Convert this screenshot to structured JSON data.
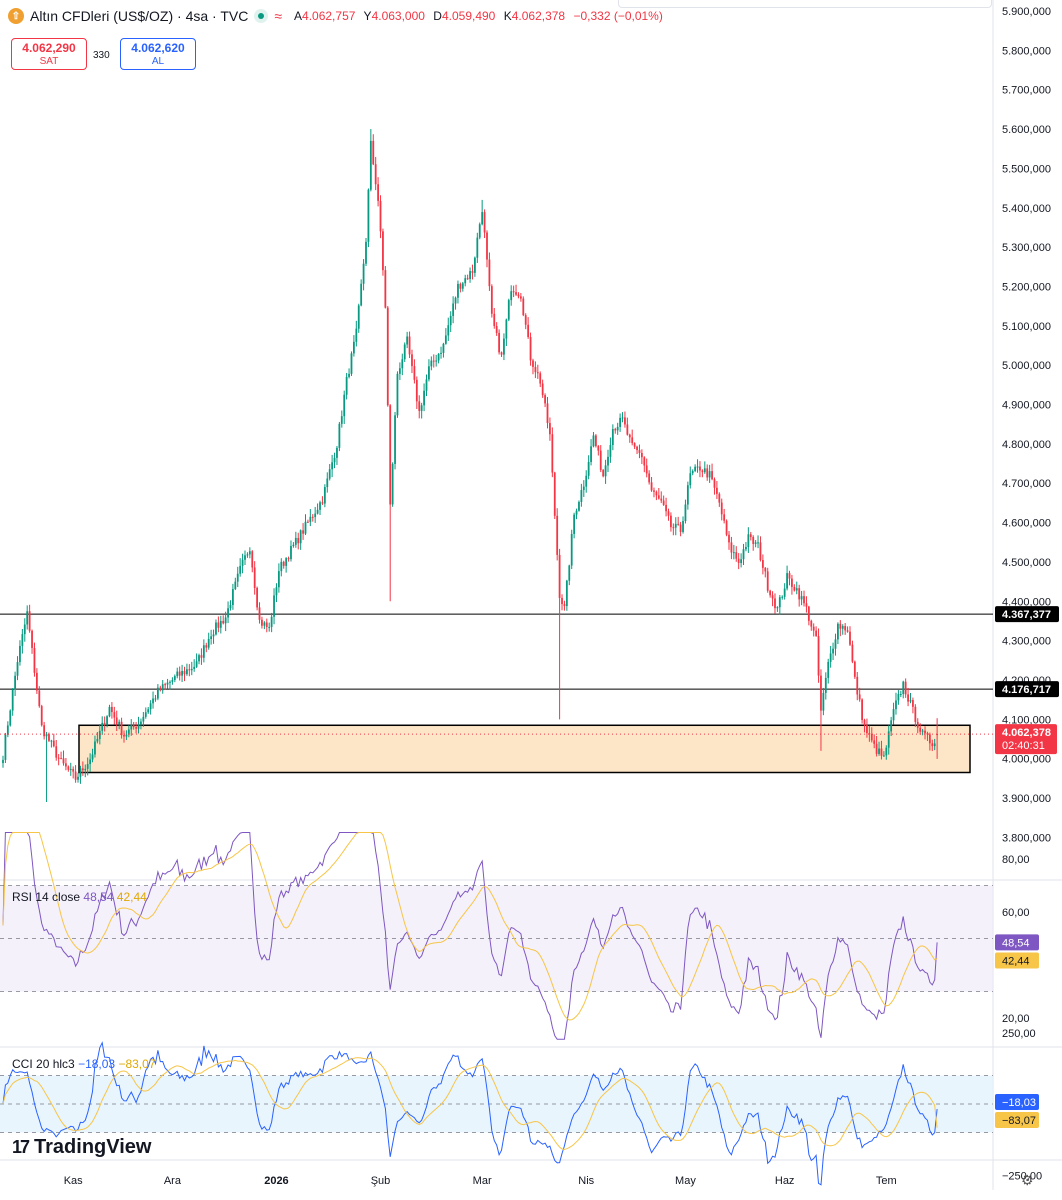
{
  "header": {
    "title": "Altın CFDleri (US$/OZ) · 4sa · TVC",
    "logo_icon": "gold-coin-icon",
    "status_icon": "market-open-dot-icon",
    "wave_icon": "wave-icon",
    "ohlc": [
      {
        "key": "A",
        "value": "4.062,757"
      },
      {
        "key": "Y",
        "value": "4.063,000"
      },
      {
        "key": "D",
        "value": "4.059,490"
      },
      {
        "key": "K",
        "value": "4.062,378"
      },
      {
        "key": "",
        "value": "−0,332 (−0,01%)"
      }
    ]
  },
  "trade": {
    "sell_price": "4.062,290",
    "sell_label": "SAT",
    "spread": "330",
    "buy_price": "4.062,620",
    "buy_label": "AL"
  },
  "branding": {
    "name": "TradingView",
    "mark": "17"
  },
  "settings_icon": "settings-gear-icon",
  "colors": {
    "up": "#089981",
    "down": "#f23645",
    "rsi_line": "#7e57c2",
    "rsi_ma": "#f7c547",
    "cci_line": "#2962ff",
    "cci_ma": "#f7c547",
    "zone_fill": "#fde6c7",
    "current_price": "#f23645"
  },
  "chart_data": [
    {
      "type": "candlestick",
      "symbol": "Altın CFDleri (US$/OZ) · 4sa · TVC",
      "y_axis_labels": [
        "3.800,000",
        "3.900,000",
        "4.000,000",
        "4.100,000",
        "4.200,000",
        "4.300,000",
        "4.400,000",
        "4.500,000",
        "4.600,000",
        "4.700,000",
        "4.800,000",
        "4.900,000",
        "5.000,000",
        "5.100,000",
        "5.200,000",
        "5.300,000",
        "5.400,000",
        "5.500,000",
        "5.600,000",
        "5.700,000",
        "5.800,000",
        "5.900,000"
      ],
      "ylim": [
        3700,
        5920
      ],
      "x_axis_labels": [
        "Kas",
        "Ara",
        "2026",
        "Şub",
        "Mar",
        "Nis",
        "May",
        "Haz",
        "Tem"
      ],
      "anchors": [
        [
          0,
          4010
        ],
        [
          6,
          4250
        ],
        [
          10,
          4370
        ],
        [
          16,
          4080
        ],
        [
          24,
          3990
        ],
        [
          30,
          3950
        ],
        [
          36,
          4000
        ],
        [
          44,
          4130
        ],
        [
          50,
          4060
        ],
        [
          56,
          4090
        ],
        [
          64,
          4170
        ],
        [
          72,
          4210
        ],
        [
          80,
          4240
        ],
        [
          86,
          4320
        ],
        [
          92,
          4360
        ],
        [
          98,
          4480
        ],
        [
          102,
          4540
        ],
        [
          106,
          4350
        ],
        [
          110,
          4330
        ],
        [
          114,
          4480
        ],
        [
          120,
          4540
        ],
        [
          126,
          4600
        ],
        [
          132,
          4660
        ],
        [
          138,
          4800
        ],
        [
          142,
          4960
        ],
        [
          146,
          5080
        ],
        [
          150,
          5320
        ],
        [
          152,
          5560
        ],
        [
          155,
          5420
        ],
        [
          158,
          5150
        ],
        [
          160,
          4640
        ],
        [
          163,
          4980
        ],
        [
          167,
          5060
        ],
        [
          172,
          4880
        ],
        [
          176,
          4990
        ],
        [
          182,
          5050
        ],
        [
          188,
          5200
        ],
        [
          194,
          5240
        ],
        [
          198,
          5400
        ],
        [
          202,
          5120
        ],
        [
          206,
          5020
        ],
        [
          210,
          5200
        ],
        [
          214,
          5180
        ],
        [
          218,
          5020
        ],
        [
          222,
          4960
        ],
        [
          226,
          4820
        ],
        [
          230,
          4420
        ],
        [
          232,
          4380
        ],
        [
          236,
          4620
        ],
        [
          240,
          4700
        ],
        [
          244,
          4820
        ],
        [
          248,
          4720
        ],
        [
          252,
          4840
        ],
        [
          256,
          4860
        ],
        [
          260,
          4790
        ],
        [
          264,
          4770
        ],
        [
          268,
          4680
        ],
        [
          272,
          4650
        ],
        [
          276,
          4590
        ],
        [
          280,
          4580
        ],
        [
          284,
          4720
        ],
        [
          288,
          4740
        ],
        [
          292,
          4720
        ],
        [
          296,
          4650
        ],
        [
          300,
          4540
        ],
        [
          304,
          4500
        ],
        [
          308,
          4560
        ],
        [
          312,
          4540
        ],
        [
          316,
          4440
        ],
        [
          320,
          4380
        ],
        [
          324,
          4460
        ],
        [
          328,
          4430
        ],
        [
          332,
          4380
        ],
        [
          336,
          4300
        ],
        [
          338,
          4120
        ],
        [
          341,
          4240
        ],
        [
          345,
          4340
        ],
        [
          349,
          4330
        ],
        [
          352,
          4200
        ],
        [
          356,
          4080
        ],
        [
          360,
          4030
        ],
        [
          364,
          4000
        ],
        [
          368,
          4120
        ],
        [
          372,
          4190
        ],
        [
          376,
          4120
        ],
        [
          380,
          4060
        ],
        [
          384,
          4040
        ],
        [
          386,
          4062
        ]
      ],
      "last_candle": {
        "open": 4062.757,
        "high": 4063.0,
        "low": 4059.49,
        "close": 4062.378
      },
      "horizontal_lines": [
        {
          "value": 4367.377,
          "label": "4.367,377"
        },
        {
          "value": 4176.717,
          "label": "4.176,717"
        }
      ],
      "zone": {
        "y_top": 4085,
        "y_bottom": 3965
      },
      "current_price": {
        "value": 4062.378,
        "label": "4.062,378",
        "countdown": "02:40:31"
      },
      "grid": false
    },
    {
      "type": "line",
      "title": "RSI",
      "settings": "14 close",
      "series": [
        {
          "name": "RSI",
          "value_label": "48,54",
          "last": 48.54
        },
        {
          "name": "MA",
          "value_label": "42,44",
          "last": 42.44
        }
      ],
      "y_axis_labels": [
        "20,00",
        "60,00",
        "80,00"
      ],
      "ylim": [
        12,
        90
      ],
      "bands": [
        30,
        50,
        70
      ]
    },
    {
      "type": "line",
      "title": "CCI",
      "settings": "20 hlc3",
      "series": [
        {
          "name": "CCI",
          "value_label": "−18,03",
          "last": -18.03
        },
        {
          "name": "MA",
          "value_label": "−83,07",
          "last": -83.07
        }
      ],
      "y_axis_labels": [
        "250,00",
        "−250,00"
      ],
      "ylim": [
        -320,
        340
      ],
      "bands": [
        -100,
        0,
        100
      ]
    }
  ]
}
